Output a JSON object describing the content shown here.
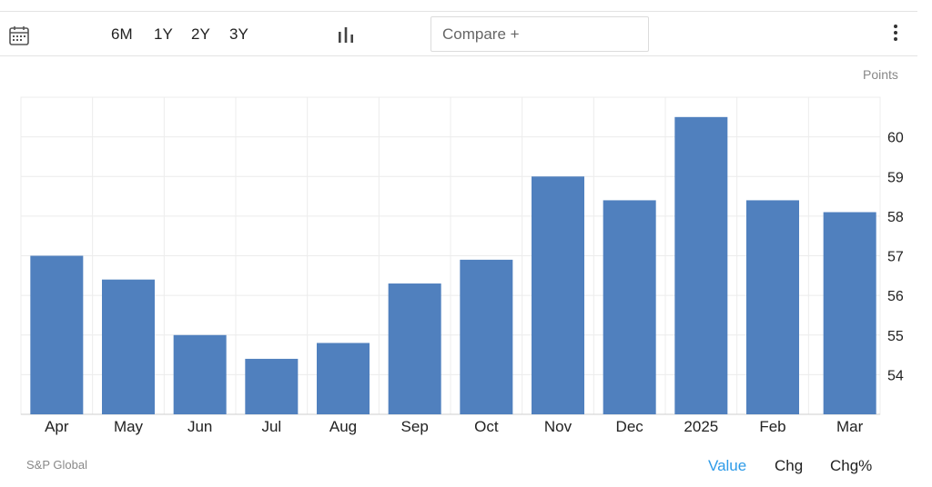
{
  "toolbar": {
    "ranges": [
      "6M",
      "1Y",
      "2Y",
      "3Y"
    ],
    "compare_placeholder": "Compare +",
    "icons": [
      "calendar-icon",
      "bar-chart-icon",
      "more-vertical-icon"
    ]
  },
  "units_label": "Points",
  "source": "S&P Global",
  "views": [
    "Value",
    "Chg",
    "Chg%"
  ],
  "colors": {
    "bar": "#5080be",
    "active": "#2e9be8",
    "grid": "#ececec"
  },
  "chart_data": {
    "type": "bar",
    "categories": [
      "Apr",
      "May",
      "Jun",
      "Jul",
      "Aug",
      "Sep",
      "Oct",
      "Nov",
      "Dec",
      "2025",
      "Feb",
      "Mar"
    ],
    "values": [
      57.0,
      56.4,
      55.0,
      54.4,
      54.8,
      56.3,
      56.9,
      59.0,
      58.4,
      60.5,
      58.4,
      58.1
    ],
    "yticks": [
      54,
      55,
      56,
      57,
      58,
      59,
      60
    ],
    "ylim": [
      53,
      61
    ],
    "ylabel": "Points",
    "grid": true
  }
}
